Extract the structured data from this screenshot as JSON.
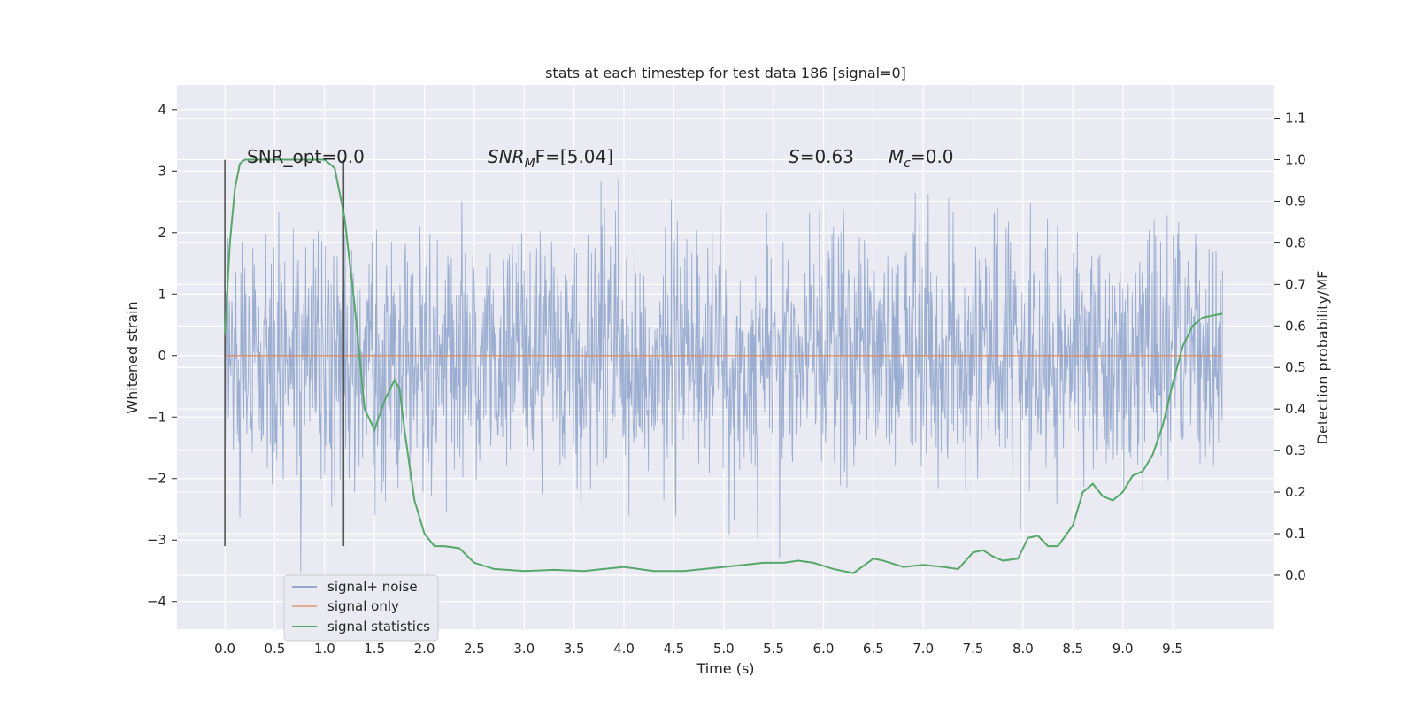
{
  "chart_data": {
    "type": "line",
    "title": "stats at each timestep for test data 186 [signal=0]",
    "xlabel": "Time (s)",
    "ylabel": "Whitened strain",
    "y2label": "Detection probability/MF",
    "xlim": [
      -0.48,
      10.52
    ],
    "ylim": [
      -4.45,
      4.4
    ],
    "y2lim": [
      -0.13,
      1.18
    ],
    "xticks": [
      "0.0",
      "0.5",
      "1.0",
      "1.5",
      "2.0",
      "2.5",
      "3.0",
      "3.5",
      "4.0",
      "4.5",
      "5.0",
      "5.5",
      "6.0",
      "6.5",
      "7.0",
      "7.5",
      "8.0",
      "8.5",
      "9.0",
      "9.5"
    ],
    "yticks": [
      "4",
      "3",
      "2",
      "1",
      "0",
      "−1",
      "−2",
      "−3",
      "−4"
    ],
    "y2ticks": [
      "1.1",
      "1.0",
      "0.9",
      "0.8",
      "0.7",
      "0.6",
      "0.5",
      "0.4",
      "0.3",
      "0.2",
      "0.1",
      "0.0"
    ],
    "grid": true,
    "legend_position": "lower-left",
    "annotations": {
      "snr_opt": "SNR_opt=0.0",
      "snr_mf": "F=[5.04]",
      "s_value": "=0.63",
      "mc_value": "=0.0"
    },
    "vertical_lines_x": [
      0.0,
      1.19
    ],
    "series": [
      {
        "name": "signal+ noise",
        "color": "#4c72b0",
        "noise_std": 1.0,
        "x_range": [
          0.0,
          10.0
        ]
      },
      {
        "name": "signal only",
        "color": "#dd8452",
        "value": 0.0
      },
      {
        "name": "signal statistics",
        "color": "#55a868",
        "x": [
          0.0,
          0.05,
          0.1,
          0.15,
          0.2,
          0.3,
          0.5,
          0.8,
          1.0,
          1.1,
          1.2,
          1.3,
          1.4,
          1.5,
          1.6,
          1.7,
          1.75,
          1.8,
          1.9,
          2.0,
          2.1,
          2.2,
          2.35,
          2.5,
          2.7,
          3.0,
          3.3,
          3.6,
          3.8,
          4.0,
          4.3,
          4.6,
          5.0,
          5.4,
          5.6,
          5.75,
          5.9,
          6.1,
          6.3,
          6.5,
          6.6,
          6.8,
          7.0,
          7.2,
          7.35,
          7.5,
          7.6,
          7.7,
          7.8,
          7.95,
          8.05,
          8.15,
          8.25,
          8.35,
          8.5,
          8.6,
          8.7,
          8.8,
          8.9,
          9.0,
          9.1,
          9.2,
          9.3,
          9.4,
          9.5,
          9.6,
          9.7,
          9.8,
          10.0
        ],
        "y": [
          0.58,
          0.8,
          0.93,
          0.99,
          1.0,
          1.0,
          1.0,
          1.0,
          1.0,
          0.98,
          0.86,
          0.65,
          0.4,
          0.35,
          0.42,
          0.47,
          0.45,
          0.35,
          0.18,
          0.1,
          0.07,
          0.07,
          0.065,
          0.03,
          0.015,
          0.01,
          0.013,
          0.01,
          0.015,
          0.02,
          0.01,
          0.01,
          0.02,
          0.03,
          0.03,
          0.035,
          0.03,
          0.015,
          0.005,
          0.04,
          0.035,
          0.02,
          0.025,
          0.02,
          0.015,
          0.055,
          0.06,
          0.045,
          0.035,
          0.04,
          0.09,
          0.095,
          0.07,
          0.07,
          0.12,
          0.2,
          0.22,
          0.19,
          0.18,
          0.2,
          0.24,
          0.25,
          0.29,
          0.36,
          0.46,
          0.55,
          0.6,
          0.62,
          0.63
        ]
      }
    ]
  }
}
